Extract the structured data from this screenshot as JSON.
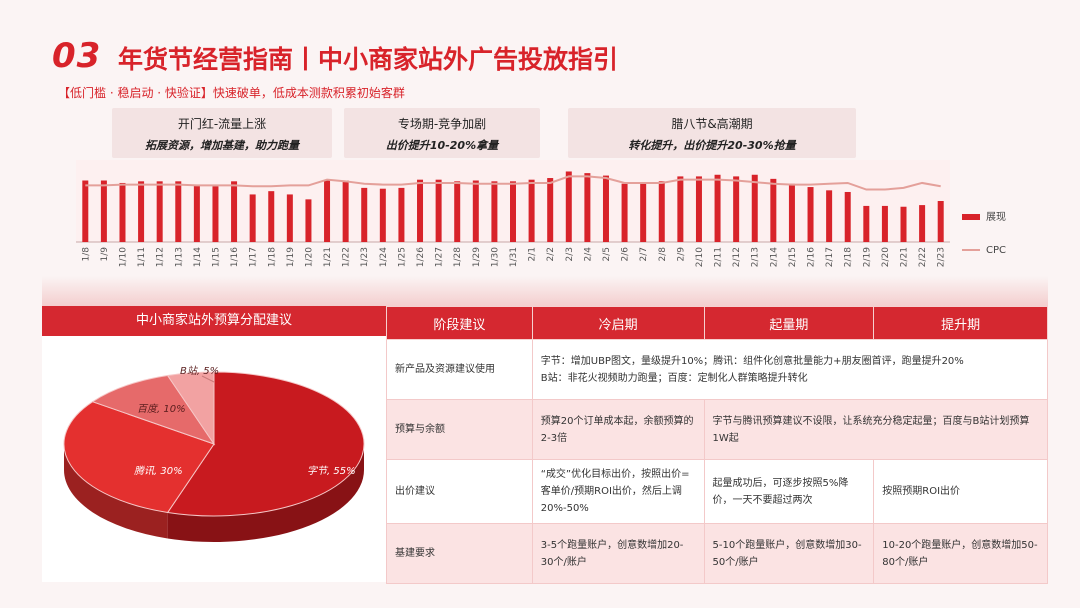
{
  "header": {
    "number": "03",
    "title": "年货节经营指南丨中小商家站外广告投放指引",
    "subtitle": "【低门槛 · 稳启动 · 快验证】快速破单，低成本测款积累初始客群"
  },
  "phases": [
    {
      "name": "开门红-流量上涨",
      "desc": "拓展资源，增加基建，助力跑量"
    },
    {
      "name": "专场期-竞争加剧",
      "desc": "出价提升10-20%拿量"
    },
    {
      "name": "腊八节&高潮期",
      "desc": "转化提升，出价提升20-30%抢量"
    }
  ],
  "chart_data": {
    "type": "bar",
    "categories": [
      "1/8",
      "1/9",
      "1/10",
      "1/11",
      "1/12",
      "1/13",
      "1/14",
      "1/15",
      "1/16",
      "1/17",
      "1/18",
      "1/19",
      "1/20",
      "1/21",
      "1/22",
      "1/23",
      "1/24",
      "1/25",
      "1/26",
      "1/27",
      "1/28",
      "1/29",
      "1/30",
      "1/31",
      "2/1",
      "2/2",
      "2/3",
      "2/4",
      "2/5",
      "2/6",
      "2/7",
      "2/8",
      "2/9",
      "2/10",
      "2/11",
      "2/12",
      "2/13",
      "2/14",
      "2/15",
      "2/16",
      "2/17",
      "2/18",
      "2/19",
      "2/20",
      "2/21",
      "2/22",
      "2/23"
    ],
    "series": [
      {
        "name": "展现",
        "type": "bar",
        "values": [
          75,
          75,
          72,
          74,
          74,
          74,
          70,
          68,
          74,
          58,
          62,
          58,
          52,
          76,
          75,
          66,
          65,
          66,
          76,
          76,
          74,
          75,
          74,
          74,
          76,
          78,
          86,
          84,
          81,
          71,
          72,
          74,
          80,
          80,
          82,
          80,
          82,
          77,
          71,
          67,
          63,
          61,
          44,
          44,
          43,
          45,
          50
        ]
      },
      {
        "name": "CPC",
        "type": "line",
        "values": [
          69,
          69,
          70,
          70,
          70,
          70,
          69,
          69,
          69,
          68,
          68,
          69,
          69,
          76,
          74,
          71,
          70,
          70,
          72,
          72,
          72,
          71,
          71,
          71,
          72,
          72,
          80,
          80,
          78,
          72,
          72,
          72,
          76,
          76,
          76,
          75,
          73,
          71,
          70,
          70,
          71,
          72,
          64,
          64,
          66,
          72,
          68
        ]
      }
    ],
    "ylim": [
      0,
      100
    ],
    "legend": "right"
  },
  "pie": {
    "title": "中小商家站外预算分配建议",
    "slices": [
      {
        "label": "字节, 55%",
        "value": 55,
        "color": "#c81a1f"
      },
      {
        "label": "腾讯, 30%",
        "value": 30,
        "color": "#e4302f"
      },
      {
        "label": "百度, 10%",
        "value": 10,
        "color": "#e66a6a"
      },
      {
        "label": "B站, 5%",
        "value": 5,
        "color": "#f2a2a2"
      }
    ]
  },
  "table": {
    "headers": [
      "阶段建议",
      "冷启期",
      "起量期",
      "提升期"
    ],
    "rows": {
      "r1_label": "新产品及资源建议使用",
      "r1_text_a": "字节：增加UBP图文，量级提升10%；腾讯：组件化创意批量能力+朋友圈首评，跑量提升20%",
      "r1_text_b": "B站：非花火视频助力跑量；百度：定制化人群策略提升转化",
      "r2_label": "预算与余额",
      "r2_cold": "预算20个订单成本起，余额预算的2-3倍",
      "r2_rest": "字节与腾讯预算建议不设限，让系统充分稳定起量；百度与B站计划预算1W起",
      "r3_label": "出价建议",
      "r3_cold": "“成交”优化目标出价，按照出价=客单价/预期ROI出价，然后上调20%-50%",
      "r3_ramp": "起量成功后，可逐步按照5%降价，一天不要超过两次",
      "r3_boost": "按照预期ROI出价",
      "r4_label": "基建要求",
      "r4_cold": "3-5个跑量账户，创意数增加20-30个/账户",
      "r4_ramp": "5-10个跑量账户，创意数增加30-50个/账户",
      "r4_boost": "10-20个跑量账户，创意数增加50-80个/账户"
    }
  }
}
